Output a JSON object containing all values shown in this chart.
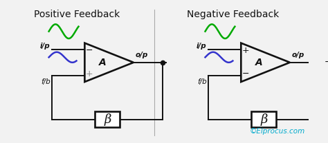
{
  "bg_color": "#f2f2f2",
  "title_left": "Positive Feedback",
  "title_right": "Negative Feedback",
  "watermark": "©Elprocus.com",
  "watermark_color": "#00aacc",
  "line_color": "#111111",
  "green_wave_color": "#00aa00",
  "blue_wave_color": "#3333cc",
  "amp_label": "A",
  "beta_label": "β",
  "ip_label": "i/p",
  "op_label": "o/p",
  "fb_label": "f/b"
}
